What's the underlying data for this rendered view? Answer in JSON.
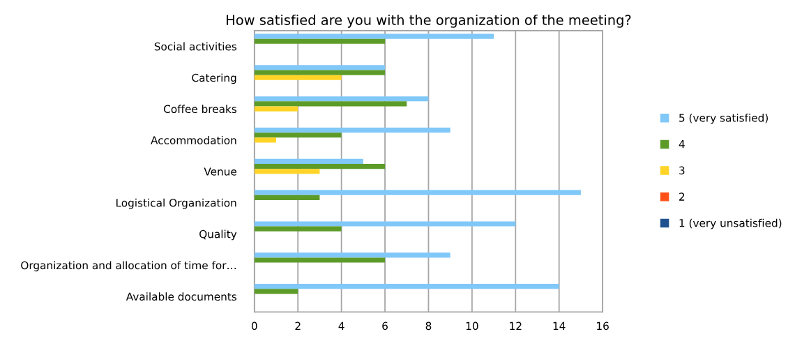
{
  "chart_data": {
    "type": "bar",
    "orientation": "horizontal",
    "title": "How satisfied are you with the organization of the meeting?",
    "categories": [
      "Social activities",
      "Catering",
      "Coffee breaks",
      "Accommodation",
      "Venue",
      "Logistical Organization",
      "Quality",
      "Organization and allocation of time for…",
      "Available documents"
    ],
    "series": [
      {
        "name": "5 (very satisfied)",
        "color": "#80c8f8",
        "values": [
          11,
          6,
          8,
          9,
          5,
          15,
          12,
          9,
          14
        ]
      },
      {
        "name": "4",
        "color": "#5c9b28",
        "values": [
          6,
          6,
          7,
          4,
          6,
          3,
          4,
          6,
          2
        ]
      },
      {
        "name": "3",
        "color": "#ffd426",
        "values": [
          0,
          4,
          2,
          1,
          3,
          0,
          0,
          0,
          0
        ]
      },
      {
        "name": "2",
        "color": "#ff5019",
        "values": [
          0,
          0,
          0,
          0,
          0,
          0,
          0,
          0,
          0
        ]
      },
      {
        "name": "1 (very unsatisfied)",
        "color": "#1f5090",
        "values": [
          0,
          0,
          0,
          0,
          0,
          0,
          0,
          0,
          0
        ]
      }
    ],
    "xlim": [
      0,
      16
    ],
    "xticks": [
      0,
      2,
      4,
      6,
      8,
      10,
      12,
      14,
      16
    ],
    "grid": "x",
    "legend": "right"
  }
}
